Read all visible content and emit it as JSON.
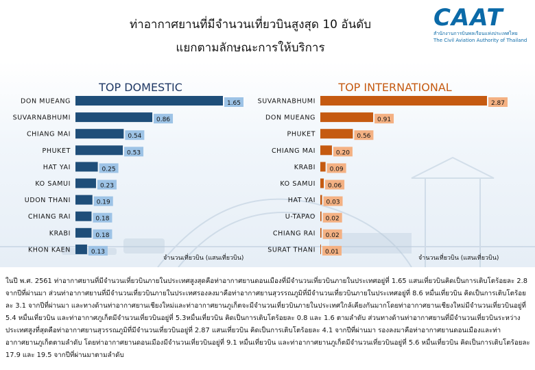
{
  "header": {
    "title_line1": "ท่าอากาศยานที่มีจำนวนเที่ยวบินสูงสุด 10 อันดับ",
    "title_line2": "แยกตามลักษณะการให้บริการ",
    "logo_word": "CAAT",
    "logo_thai": "สำนักงานการบินพลเรือนแห่งประเทศไทย",
    "logo_english": "The Civil Aviation Authority of Thailand"
  },
  "colors": {
    "domestic": "#1f4e79",
    "domestic_label_bg": "#9dc3e6",
    "international": "#c55a11",
    "international_label_bg": "#f4b183",
    "international_title": "#c55a11",
    "domestic_title": "#1f3864"
  },
  "chart_data": [
    {
      "type": "bar",
      "orientation": "horizontal",
      "title": "TOP DOMESTIC",
      "categories": [
        "DON MUEANG",
        "SUVARNABHUMI",
        "CHIANG MAI",
        "PHUKET",
        "HAT YAI",
        "KO SAMUI",
        "UDON THANI",
        "CHIANG RAI",
        "KRABI",
        "KHON KAEN"
      ],
      "values": [
        1.65,
        0.86,
        0.54,
        0.53,
        0.25,
        0.23,
        0.19,
        0.18,
        0.18,
        0.13
      ],
      "value_labels": [
        "1.65",
        "0.86",
        "0.54",
        "0.53",
        "0.25",
        "0.23",
        "0.19",
        "0.18",
        "0.18",
        "0.13"
      ],
      "xlabel": "จำนวนเที่ยวบิน (แสนเที่ยวบิน)",
      "xlim": [
        0,
        1.65
      ],
      "grid": false
    },
    {
      "type": "bar",
      "orientation": "horizontal",
      "title": "TOP INTERNATIONAL",
      "categories": [
        "SUVARNABHUMI",
        "DON MUEANG",
        "PHUKET",
        "CHIANG MAI",
        "KRABI",
        "KO SAMUI",
        "HAT YAI",
        "U-TAPAO",
        "CHIANG RAI",
        "SURAT THANI"
      ],
      "values": [
        2.87,
        0.91,
        0.56,
        0.2,
        0.09,
        0.06,
        0.03,
        0.02,
        0.02,
        0.01
      ],
      "value_labels": [
        "2.87",
        "0.91",
        "0.56",
        "0.20",
        "0.09",
        "0.06",
        "0.03",
        "0.02",
        "0.02",
        "0.01"
      ],
      "xlabel": "จำนวนเที่ยวบิน (แสนเที่ยวบิน)",
      "xlim": [
        0,
        2.87
      ],
      "grid": false
    }
  ],
  "summary_text": "ในปี พ.ศ. 2561 ท่าอากาศยานที่มีจำนวนเที่ยวบินภายในประเทศสูงสุดคือท่าอากาศยานดอนเมืองที่มีจำนวนเที่ยวบินภายในประเทศอยู่ที่ 1.65 แสนเที่ยวบินคิดเป็นการเติบโตร้อยละ 2.8 จากปีที่ผ่านมา ส่วนท่าอากาศยานที่มีจำนวนเที่ยวบินภายในประเทศรองลงมาคือท่าอากาศยานสุวรรณภูมิที่มีจำนวนเที่ยวบินภายในประเทศอยู่ที่ 8.6 หมื่นเที่ยวบิน คิดเป็นการเติบโตร้อยละ 3.1 จากปีที่ผ่านมา และทางด้านท่าอากาศยานเชียงใหม่และท่าอากาศยานภูเก็ตจะมีจำนวนเที่ยวบินภายในประเทศใกล้เคียงกันมากโดยท่าอากาศยานเชียงใหม่มีจำนวนเที่ยวบินอยู่ที่ 5.4 หมื่นเที่ยวบิน และท่าอากาศภูเก็ตมีจำนวนเที่ยวบินอยู่ที่ 5.3หมื่นเที่ยวบิน คิดเป็นการเติบโตร้อยละ 0.8 และ 1.6 ตามลำดับ ส่วนทางด้านท่าอากาศยานที่มีจำนวนเที่ยวบินระหว่างประเทศสูงที่สุดคือท่าอากาศยานสุวรรณภูมิที่มีจำนวนเที่ยวบินอยู่ที่ 2.87 แสนเที่ยวบิน คิดเป็นการเติบโตร้อยละ 4.1 จากปีที่ผ่านมา รองลงมาคือท่าอากาศยานดอนเมืองและท่าอากาศยานภูเก็ตตามลำดับ โดยท่าอากาศยานดอนเมืองมีจำนวนเที่ยวบินอยู่ที่ 9.1 หมื่นเที่ยวบิน และท่าอากาศยานภูเก็ตมีจำนวนเที่ยวบินอยู่ที่ 5.6 หมื่นเที่ยวบิน คิดเป็นการเติบโตร้อยละ 17.9 และ 19.5 จากปีที่ผ่านมาตามลำดับ"
}
